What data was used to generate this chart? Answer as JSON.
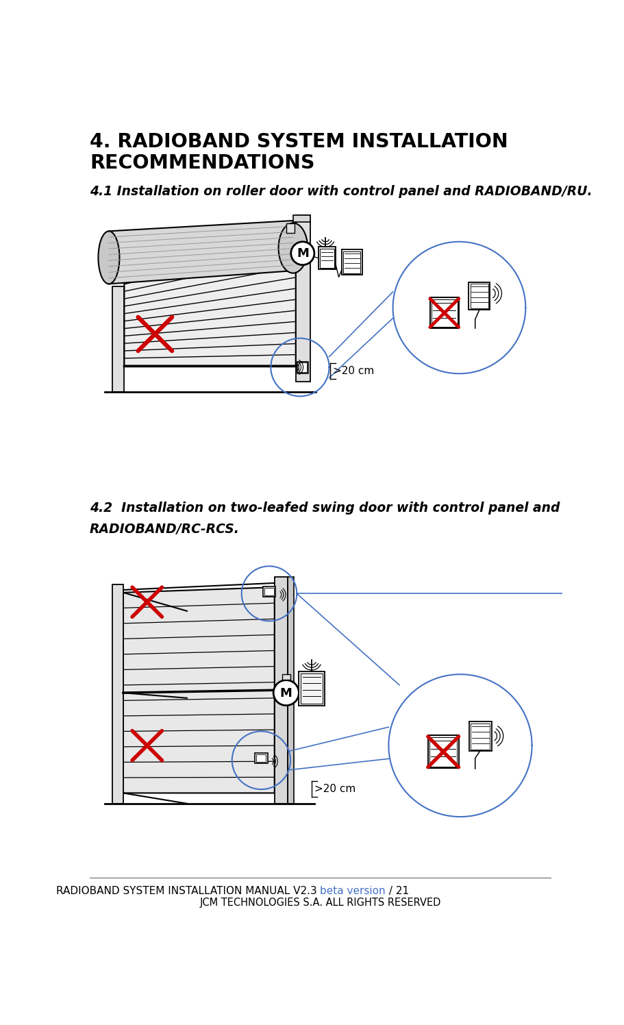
{
  "title_line1": "4. RADIOBAND SYSTEM INSTALLATION",
  "title_line2": "RECOMMENDATIONS",
  "subtitle1": "4.1 Installation on roller door with control panel and RADIOBAND/RU.",
  "subtitle2_line1": "4.2  Installation on two-leafed swing door with control panel and",
  "subtitle2_line2": "RADIOBAND/RC-RCS.",
  "footer_main": "RADIOBAND SYSTEM INSTALLATION MANUAL V2.3 ",
  "footer_blue": "beta version",
  "footer_end": " / 21",
  "footer_sub": "JCM TECHNOLOGIES S.A. ALL RIGHTS RESERVED",
  "bg_color": "#ffffff",
  "title_color": "#000000",
  "subtitle_color": "#000000",
  "footer_color": "#000000",
  "footer_blue_color": "#4472C4",
  "blue_circle_color": "#4472C4",
  "red_color": "#cc0000",
  "line_color": "#000000",
  "fill_light": "#e8e8e8",
  "fill_mid": "#d0d0d0",
  "fill_dark": "#b8b8b8",
  "fill_white": "#ffffff"
}
